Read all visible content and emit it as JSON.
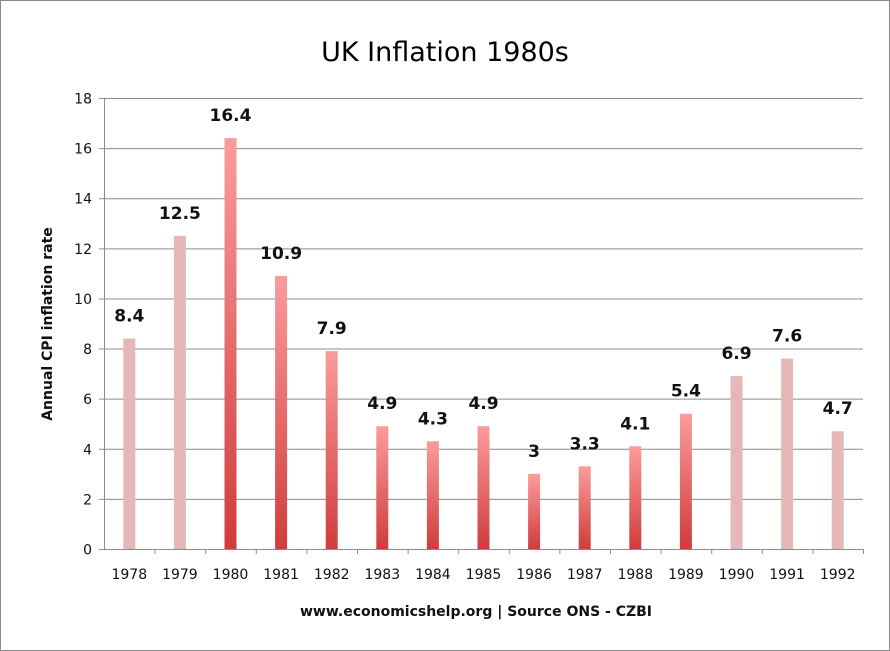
{
  "chart_data": {
    "type": "bar",
    "title": "UK Inflation 1980s",
    "xlabel": "www.economicshelp.org | Source ONS - CZBI",
    "ylabel": "Annual CPI inflation rate",
    "categories": [
      "1978",
      "1979",
      "1980",
      "1981",
      "1982",
      "1983",
      "1984",
      "1985",
      "1986",
      "1987",
      "1988",
      "1989",
      "1990",
      "1991",
      "1992"
    ],
    "values": [
      8.4,
      12.5,
      16.4,
      10.9,
      7.9,
      4.9,
      4.3,
      4.9,
      3,
      3.3,
      4.1,
      5.4,
      6.9,
      7.6,
      4.7
    ],
    "highlighted": [
      false,
      false,
      true,
      true,
      true,
      true,
      true,
      true,
      true,
      true,
      true,
      true,
      false,
      false,
      false
    ],
    "ylim": [
      0,
      18
    ],
    "yticks": [
      0,
      2,
      4,
      6,
      8,
      10,
      12,
      14,
      16,
      18
    ],
    "grid": true,
    "legend": "none",
    "colors": {
      "pale": "#e6b7b7",
      "highlight_top": "#fb9c9c",
      "highlight_bottom": "#d03c3c",
      "grid": "#8c8c8c"
    }
  }
}
